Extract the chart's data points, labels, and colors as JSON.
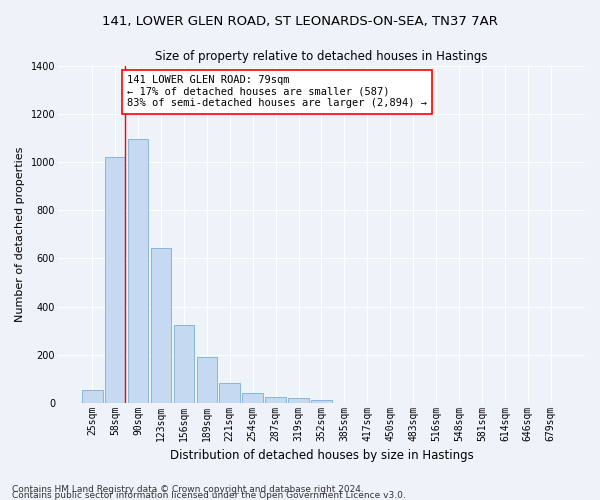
{
  "title1": "141, LOWER GLEN ROAD, ST LEONARDS-ON-SEA, TN37 7AR",
  "title2": "Size of property relative to detached houses in Hastings",
  "xlabel": "Distribution of detached houses by size in Hastings",
  "ylabel": "Number of detached properties",
  "categories": [
    "25sqm",
    "58sqm",
    "90sqm",
    "123sqm",
    "156sqm",
    "189sqm",
    "221sqm",
    "254sqm",
    "287sqm",
    "319sqm",
    "352sqm",
    "385sqm",
    "417sqm",
    "450sqm",
    "483sqm",
    "516sqm",
    "548sqm",
    "581sqm",
    "614sqm",
    "646sqm",
    "679sqm"
  ],
  "values": [
    55,
    1020,
    1095,
    645,
    325,
    190,
    85,
    40,
    25,
    22,
    15,
    0,
    0,
    0,
    0,
    0,
    0,
    0,
    0,
    0,
    0
  ],
  "bar_color": "#c5d9f0",
  "bar_edge_color": "#7bafd4",
  "annotation_text": "141 LOWER GLEN ROAD: 79sqm\n← 17% of detached houses are smaller (587)\n83% of semi-detached houses are larger (2,894) →",
  "annotation_box_color": "white",
  "annotation_box_edge_color": "red",
  "vline_color": "red",
  "footer1": "Contains HM Land Registry data © Crown copyright and database right 2024.",
  "footer2": "Contains public sector information licensed under the Open Government Licence v3.0.",
  "ylim": [
    0,
    1400
  ],
  "yticks": [
    0,
    200,
    400,
    600,
    800,
    1000,
    1200,
    1400
  ],
  "background_color": "#eef2f9",
  "grid_color": "white",
  "title_fontsize": 9.5,
  "subtitle_fontsize": 8.5,
  "axis_label_fontsize": 8,
  "tick_fontsize": 7,
  "footer_fontsize": 6.5,
  "annotation_fontsize": 7.5,
  "vline_pos": 1.42
}
